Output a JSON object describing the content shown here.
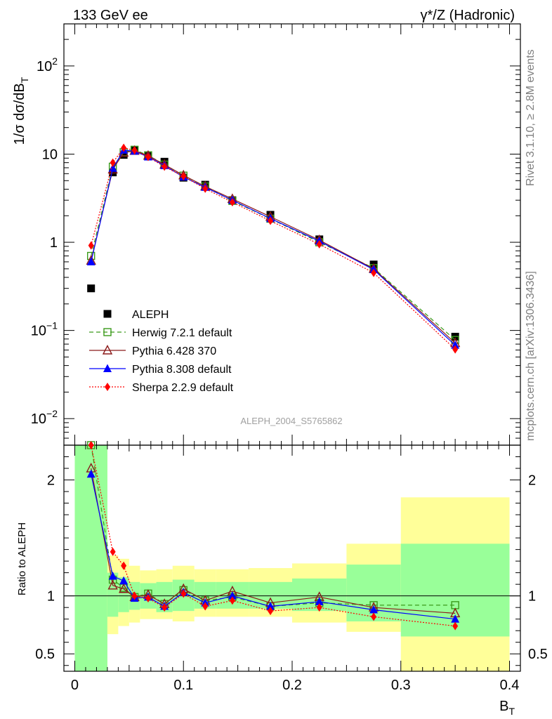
{
  "header": {
    "left": "133 GeV ee",
    "right": "γ*/Z (Hadronic)"
  },
  "side": {
    "rivet": "Rivet 3.1.10, ≥ 2.8M events",
    "mcplots": "mcplots.cern.ch [arXiv:1306.3436]"
  },
  "watermark": "ALEPH_2004_S5765862",
  "chart_data": [
    {
      "type": "line",
      "panel": "main",
      "ylabel": "1/σ  dσ/dB_T",
      "yscale": "log",
      "ylim": [
        0.005,
        300
      ],
      "xlim": [
        -0.01,
        0.41
      ],
      "y_ticks": [
        "10^-2",
        "10^-1",
        "1",
        "10",
        "10^2"
      ],
      "legend_position": "lower-left",
      "x": [
        0.015,
        0.035,
        0.045,
        0.055,
        0.0675,
        0.0825,
        0.1,
        0.12,
        0.145,
        0.18,
        0.225,
        0.275,
        0.35
      ],
      "series": [
        {
          "name": "ALEPH",
          "color": "#000000",
          "marker": "square",
          "values": [
            0.3,
            6.2,
            9.8,
            11.0,
            9.5,
            8.2,
            5.4,
            4.5,
            3.0,
            2.05,
            1.08,
            0.56,
            0.085
          ]
        },
        {
          "name": "Herwig 7.2.1 default",
          "color": "#3a9a1a",
          "marker": "open-square",
          "dash": "6,4",
          "values": [
            0.7,
            7.2,
            10.5,
            11.2,
            9.7,
            7.6,
            5.7,
            4.3,
            2.95,
            1.85,
            1.0,
            0.51,
            0.078
          ]
        },
        {
          "name": "Pythia 6.428 370",
          "color": "#8b1a1a",
          "marker": "open-triangle",
          "dash": "",
          "values": [
            0.62,
            6.7,
            10.4,
            10.9,
            9.6,
            7.6,
            5.75,
            4.3,
            3.1,
            1.95,
            1.06,
            0.5,
            0.072
          ]
        },
        {
          "name": "Pythia 8.308 default",
          "color": "#0000ff",
          "marker": "triangle",
          "dash": "",
          "values": [
            0.6,
            6.9,
            11.1,
            10.8,
            9.3,
            7.4,
            5.5,
            4.2,
            3.0,
            1.86,
            1.03,
            0.49,
            0.068
          ]
        },
        {
          "name": "Sherpa 2.2.9 default",
          "color": "#ff0000",
          "marker": "diamond",
          "dash": "2,2",
          "values": [
            0.92,
            8.0,
            11.8,
            11.0,
            9.3,
            7.2,
            5.6,
            4.05,
            2.85,
            1.75,
            0.95,
            0.45,
            0.061
          ]
        }
      ]
    },
    {
      "type": "line",
      "panel": "ratio",
      "ylabel": "Ratio to ALEPH",
      "xlabel": "B_T",
      "ylim": [
        0.35,
        2.3
      ],
      "xlim": [
        -0.01,
        0.41
      ],
      "x_ticks": [
        "0",
        "0.1",
        "0.2",
        "0.3",
        "0.4"
      ],
      "y_ticks": [
        "0.5",
        "1",
        "2"
      ],
      "reference_line": 1,
      "x": [
        0.015,
        0.035,
        0.045,
        0.055,
        0.0675,
        0.0825,
        0.1,
        0.12,
        0.145,
        0.18,
        0.225,
        0.275,
        0.35
      ],
      "bands": {
        "bin_edges": [
          0.0,
          0.03,
          0.04,
          0.05,
          0.06,
          0.075,
          0.09,
          0.11,
          0.13,
          0.16,
          0.2,
          0.25,
          0.3,
          0.4
        ],
        "inner_color": "#99ff99",
        "outer_color": "#ffff99",
        "inner": [
          [
            0.35,
            2.3
          ],
          [
            0.82,
            1.2
          ],
          [
            0.86,
            1.16
          ],
          [
            0.88,
            1.12
          ],
          [
            0.89,
            1.11
          ],
          [
            0.86,
            1.12
          ],
          [
            0.87,
            1.14
          ],
          [
            0.89,
            1.12
          ],
          [
            0.89,
            1.12
          ],
          [
            0.89,
            1.12
          ],
          [
            0.87,
            1.15
          ],
          [
            0.78,
            1.27
          ],
          [
            0.65,
            1.45
          ]
        ],
        "outer": [
          [
            0.35,
            2.3
          ],
          [
            0.67,
            1.35
          ],
          [
            0.74,
            1.32
          ],
          [
            0.77,
            1.26
          ],
          [
            0.8,
            1.22
          ],
          [
            0.8,
            1.23
          ],
          [
            0.78,
            1.26
          ],
          [
            0.82,
            1.23
          ],
          [
            0.82,
            1.23
          ],
          [
            0.82,
            1.24
          ],
          [
            0.77,
            1.28
          ],
          [
            0.69,
            1.45
          ],
          [
            0.35,
            1.85
          ]
        ]
      },
      "series": [
        {
          "name": "Herwig 7.2.1 default",
          "color": "#3a9a1a",
          "marker": "open-square",
          "dash": "6,4",
          "values": [
            2.3,
            1.14,
            1.07,
            0.99,
            1.02,
            0.93,
            1.05,
            0.96,
            0.99,
            0.91,
            0.94,
            0.92,
            0.92
          ]
        },
        {
          "name": "Pythia 6.428 370",
          "color": "#8b1a1a",
          "marker": "open-triangle",
          "dash": "",
          "values": [
            2.1,
            1.09,
            1.06,
            0.99,
            1.01,
            0.93,
            1.06,
            0.96,
            1.04,
            0.94,
            0.99,
            0.9,
            0.85
          ]
        },
        {
          "name": "Pythia 8.308 default",
          "color": "#0000ff",
          "marker": "triangle",
          "dash": "",
          "values": [
            2.05,
            1.17,
            1.13,
            0.98,
            0.99,
            0.91,
            1.03,
            0.94,
            1.0,
            0.91,
            0.95,
            0.88,
            0.8
          ]
        },
        {
          "name": "Sherpa 2.2.9 default",
          "color": "#ff0000",
          "marker": "diamond",
          "dash": "2,2",
          "values": [
            2.3,
            1.38,
            1.26,
            1.0,
            0.98,
            0.9,
            1.02,
            0.91,
            0.96,
            0.87,
            0.9,
            0.82,
            0.74
          ]
        }
      ]
    }
  ]
}
